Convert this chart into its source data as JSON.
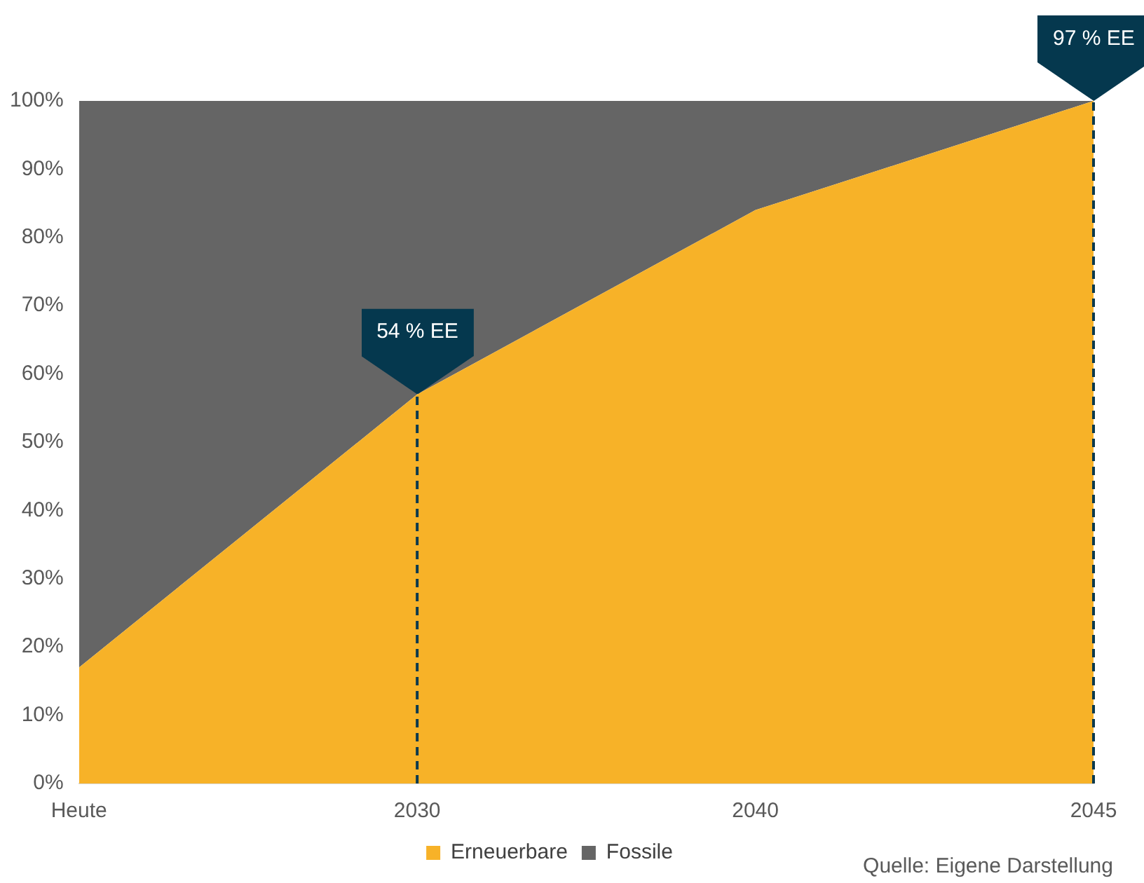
{
  "chart_data": {
    "type": "area",
    "stacked": true,
    "categories": [
      "Heute",
      "2030",
      "2040",
      "2045"
    ],
    "series": [
      {
        "name": "Erneuerbare",
        "color": "#f7b228",
        "values": [
          17,
          57,
          84,
          100
        ]
      },
      {
        "name": "Fossile",
        "color": "#656565",
        "values": [
          83,
          43,
          16,
          0
        ]
      }
    ],
    "ylim": [
      0,
      100
    ],
    "yticks": [
      {
        "value": 0,
        "label": "0%"
      },
      {
        "value": 10,
        "label": "10%"
      },
      {
        "value": 20,
        "label": "20%"
      },
      {
        "value": 30,
        "label": "30%"
      },
      {
        "value": 40,
        "label": "40%"
      },
      {
        "value": 50,
        "label": "50%"
      },
      {
        "value": 60,
        "label": "60%"
      },
      {
        "value": 70,
        "label": "70%"
      },
      {
        "value": 80,
        "label": "80%"
      },
      {
        "value": 90,
        "label": "90%"
      },
      {
        "value": 100,
        "label": "100%"
      }
    ],
    "grid": false,
    "legend": "bottom",
    "ref_lines": [
      {
        "axis": "x",
        "value": "2030",
        "color": "#0b3a4e",
        "line_style": "dashed"
      },
      {
        "axis": "x",
        "value": "2045",
        "color": "#0b3a4e",
        "line_style": "dashed"
      }
    ],
    "annotations": [
      {
        "text": "54 % EE",
        "x": "2030",
        "y": 57
      },
      {
        "text": "97 % EE",
        "x": "2045",
        "y": 100
      },
      "Quelle: Eigene Darstellung"
    ]
  }
}
